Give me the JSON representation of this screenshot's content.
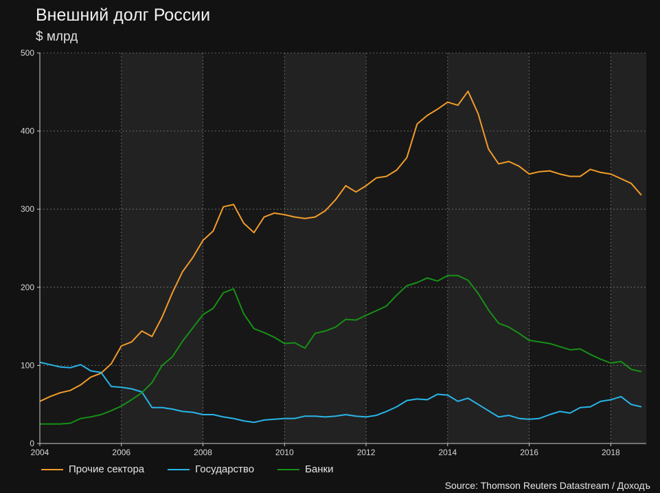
{
  "title": "Внешний долг России",
  "subtitle": "$ млрд",
  "source": "Source: Thomson Reuters Datastream / Доходъ",
  "colors": {
    "background": "#121212",
    "band_dark": "#171717",
    "band_light": "#222222",
    "grid": "#7a7a7a",
    "axis": "#cfcfcf"
  },
  "chart_data": {
    "type": "line",
    "xlim": [
      2004,
      2018.87
    ],
    "ylim": [
      0,
      500
    ],
    "x_ticks": [
      2004,
      2006,
      2008,
      2010,
      2012,
      2014,
      2016,
      2018
    ],
    "y_ticks": [
      0,
      100,
      200,
      300,
      400,
      500
    ],
    "grid": true,
    "legend_position": "bottom-left",
    "x": [
      2004.0,
      2004.25,
      2004.5,
      2004.75,
      2005.0,
      2005.25,
      2005.5,
      2005.75,
      2006.0,
      2006.25,
      2006.5,
      2006.75,
      2007.0,
      2007.25,
      2007.5,
      2007.75,
      2008.0,
      2008.25,
      2008.5,
      2008.75,
      2009.0,
      2009.25,
      2009.5,
      2009.75,
      2010.0,
      2010.25,
      2010.5,
      2010.75,
      2011.0,
      2011.25,
      2011.5,
      2011.75,
      2012.0,
      2012.25,
      2012.5,
      2012.75,
      2013.0,
      2013.25,
      2013.5,
      2013.75,
      2014.0,
      2014.25,
      2014.5,
      2014.75,
      2015.0,
      2015.25,
      2015.5,
      2015.75,
      2016.0,
      2016.25,
      2016.5,
      2016.75,
      2017.0,
      2017.25,
      2017.5,
      2017.75,
      2018.0,
      2018.25,
      2018.5,
      2018.75
    ],
    "series": [
      {
        "name": "Прочие сектора",
        "color": "#f39c2b",
        "values": [
          54,
          60,
          65,
          68,
          75,
          85,
          90,
          102,
          125,
          130,
          144,
          137,
          162,
          193,
          220,
          238,
          260,
          272,
          303,
          306,
          282,
          270,
          290,
          295,
          293,
          290,
          288,
          290,
          298,
          312,
          330,
          322,
          330,
          340,
          342,
          350,
          366,
          409,
          420,
          428,
          437,
          433,
          451,
          422,
          377,
          358,
          361,
          355,
          345,
          348,
          349,
          345,
          342,
          342,
          351,
          347,
          345,
          339,
          333,
          318
        ]
      },
      {
        "name": "Государство",
        "color": "#29b6e8",
        "values": [
          104,
          101,
          98,
          97,
          101,
          93,
          91,
          73,
          72,
          70,
          66,
          46,
          46,
          44,
          41,
          40,
          37,
          37,
          34,
          32,
          29,
          27,
          30,
          31,
          32,
          32,
          35,
          35,
          34,
          35,
          37,
          35,
          34,
          36,
          41,
          47,
          55,
          57,
          56,
          63,
          62,
          54,
          58,
          50,
          42,
          34,
          36,
          32,
          31,
          32,
          37,
          41,
          39,
          46,
          47,
          54,
          56,
          60,
          50,
          47
        ]
      },
      {
        "name": "Банки",
        "color": "#169116",
        "values": [
          25,
          25,
          25,
          26,
          32,
          34,
          37,
          42,
          48,
          56,
          65,
          78,
          100,
          111,
          131,
          148,
          165,
          173,
          193,
          198,
          166,
          147,
          142,
          136,
          128,
          129,
          122,
          141,
          144,
          149,
          159,
          158,
          164,
          170,
          176,
          190,
          202,
          206,
          212,
          208,
          215,
          215,
          209,
          192,
          171,
          154,
          149,
          141,
          132,
          130,
          128,
          124,
          120,
          121,
          114,
          108,
          103,
          105,
          95,
          92
        ]
      }
    ]
  }
}
